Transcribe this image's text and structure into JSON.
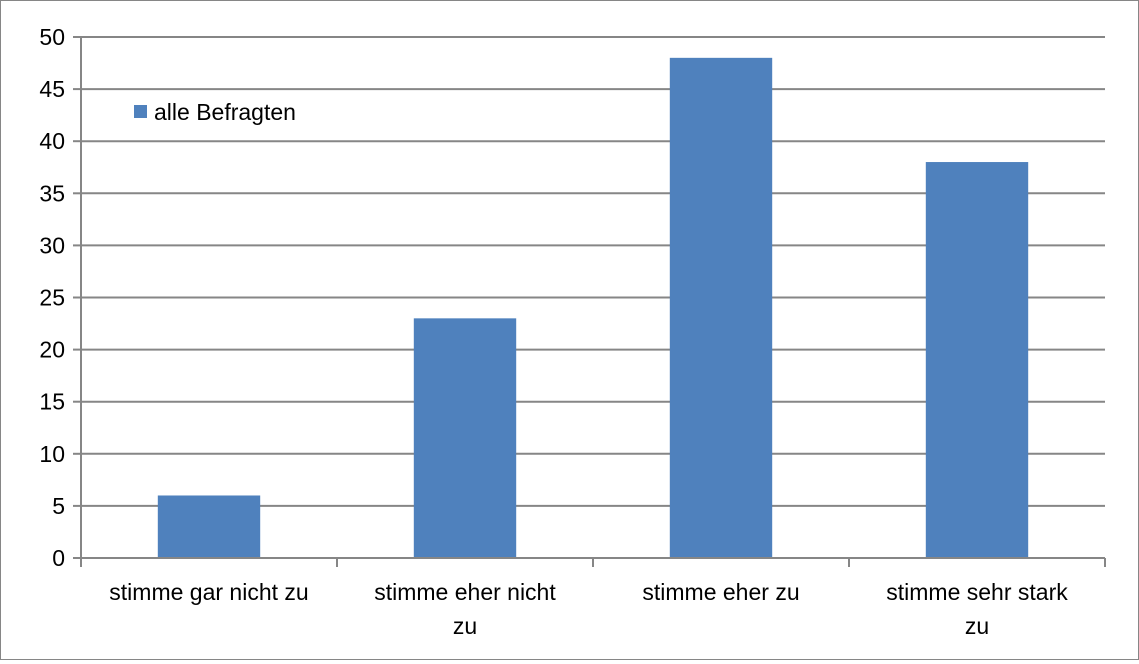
{
  "chart_data": {
    "type": "bar",
    "categories": [
      [
        "stimme gar nicht zu"
      ],
      [
        "stimme eher nicht",
        "zu"
      ],
      [
        "stimme eher zu"
      ],
      [
        "stimme sehr stark",
        "zu"
      ]
    ],
    "series": [
      {
        "name": "alle Befragten",
        "values": [
          6,
          23,
          48,
          38
        ],
        "color": "#4F81BD"
      }
    ],
    "ylim": [
      0,
      50
    ],
    "yticks": [
      0,
      5,
      10,
      15,
      20,
      25,
      30,
      35,
      40,
      45,
      50
    ],
    "grid": true,
    "gridColor": "#868686",
    "legend": "top-left"
  }
}
